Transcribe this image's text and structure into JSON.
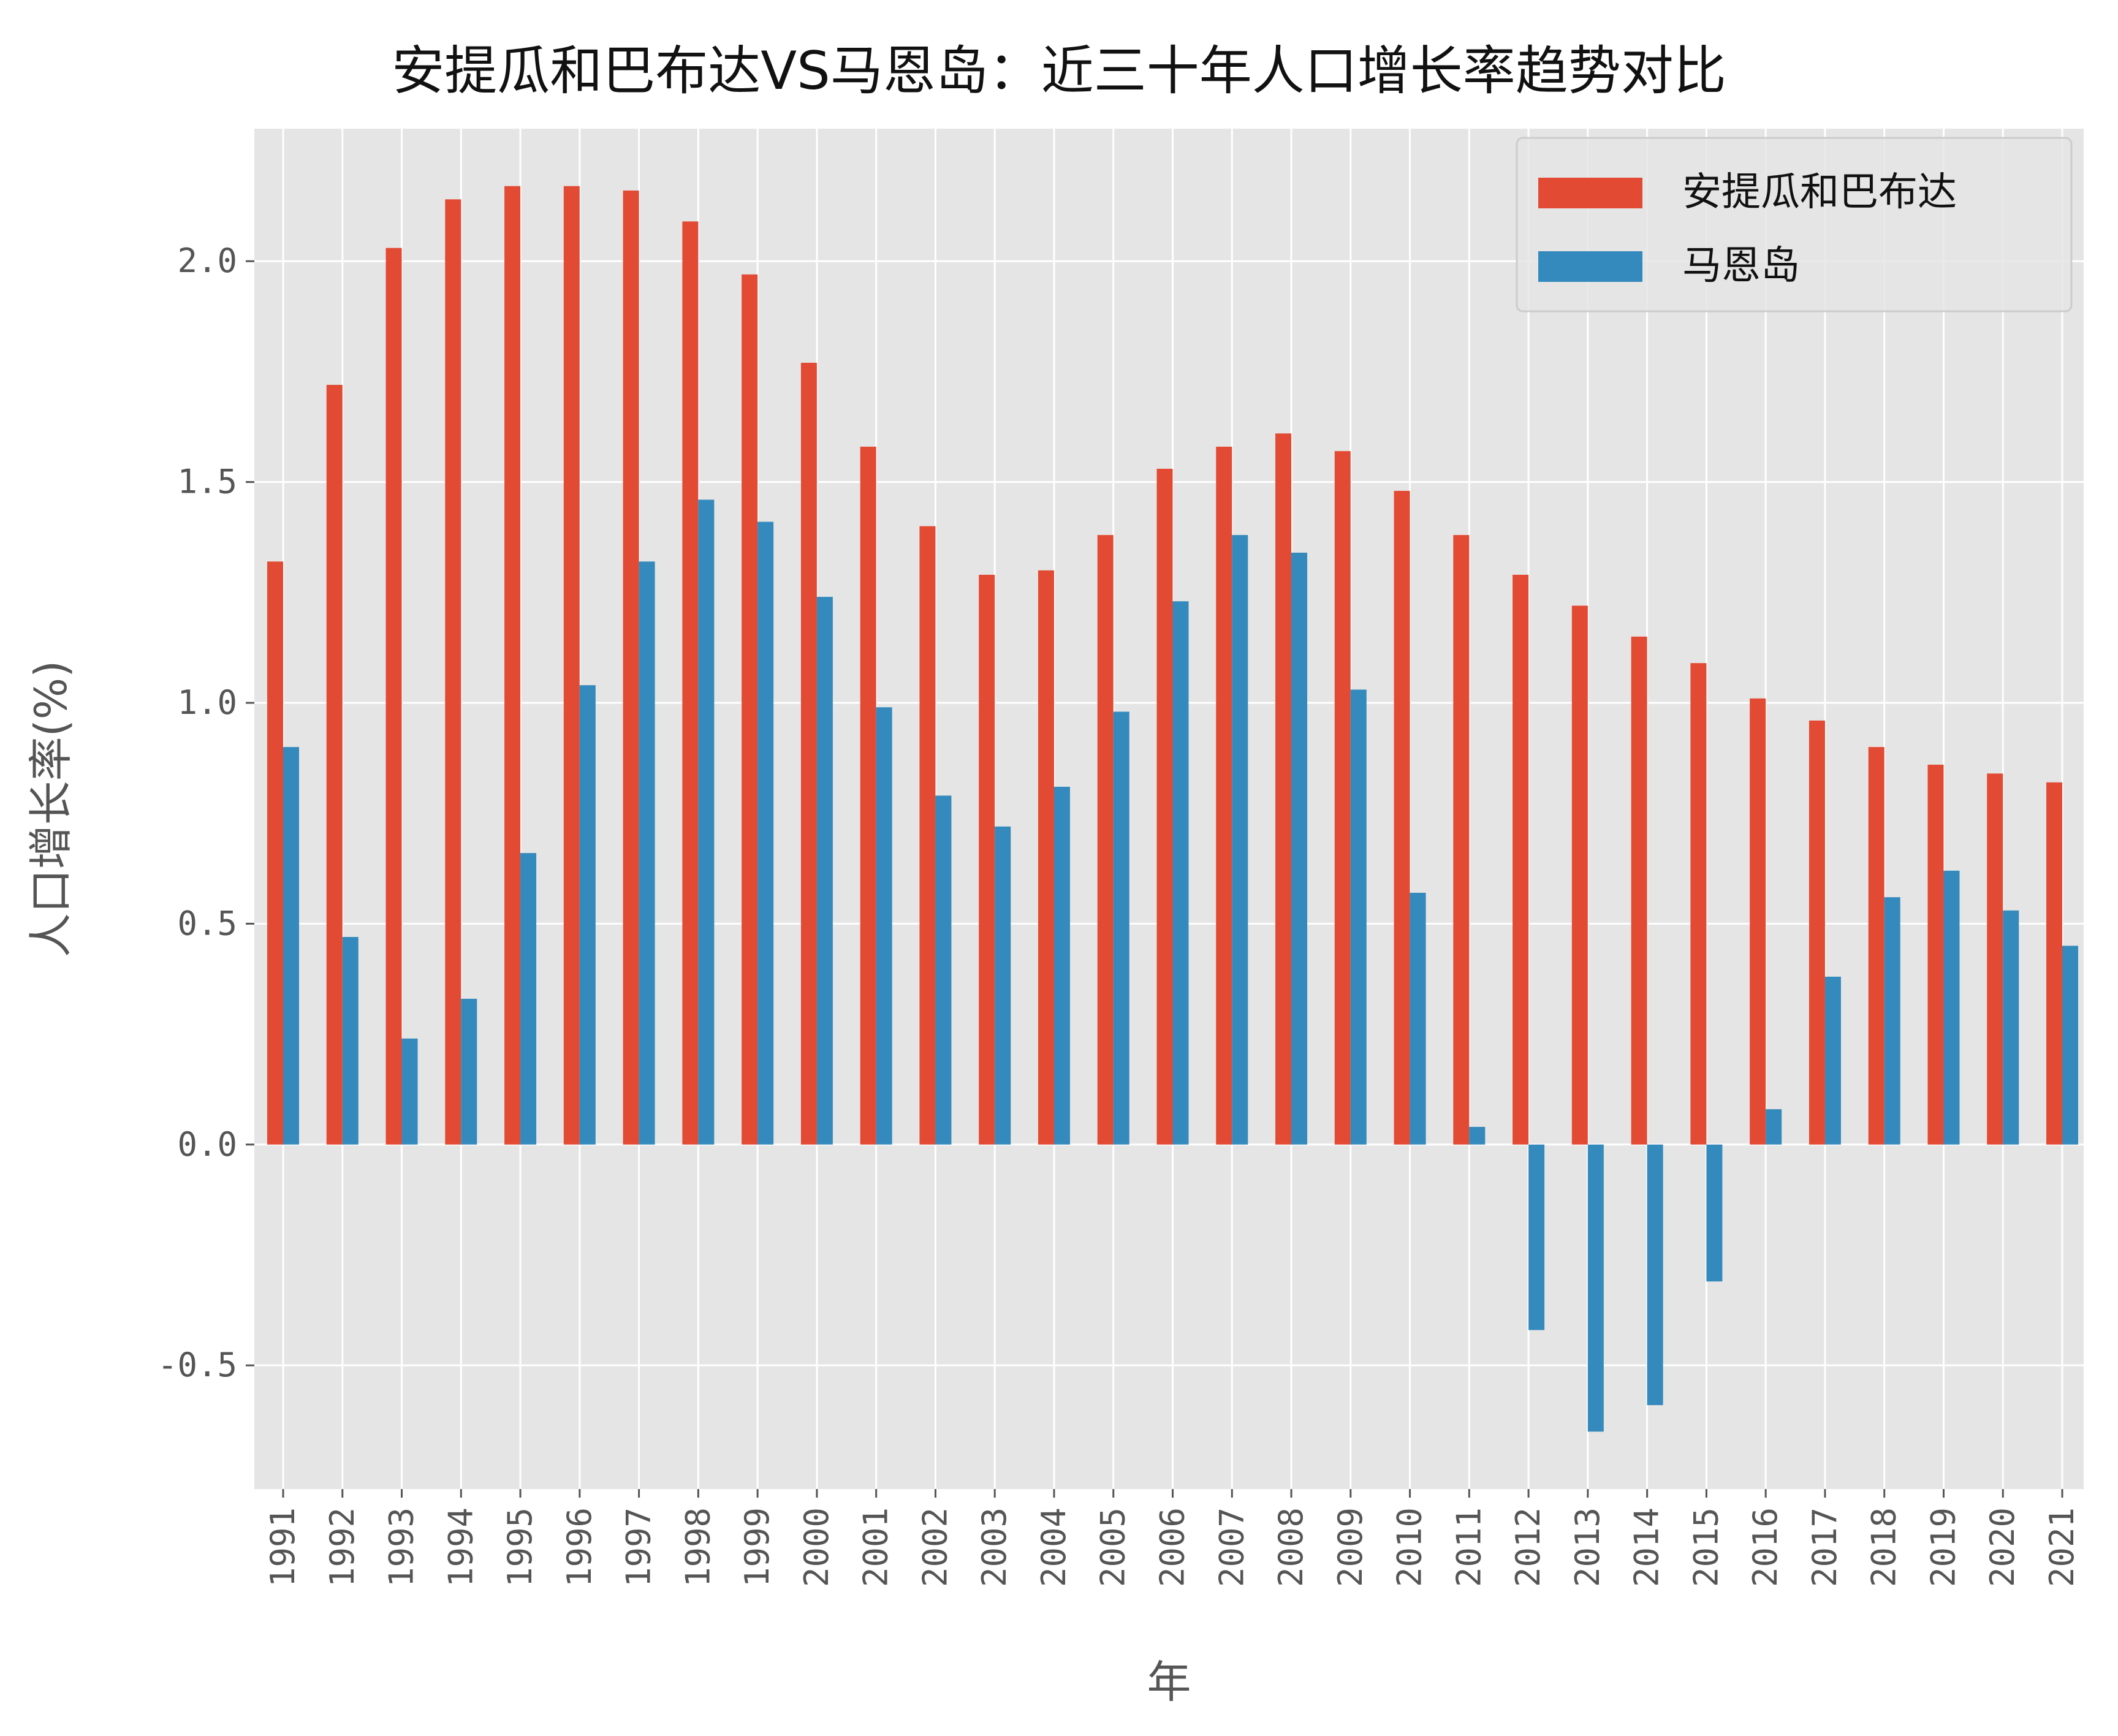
{
  "chart_data": {
    "type": "bar",
    "title": "安提瓜和巴布达VS马恩岛：近三十年人口增长率趋势对比",
    "xlabel": "年",
    "ylabel": "人口增长率(%)",
    "ylim": [
      -0.78,
      2.3
    ],
    "yticks": [
      -0.5,
      0.0,
      0.5,
      1.0,
      1.5,
      2.0
    ],
    "ytick_labels": [
      "-0.5",
      "0.0",
      "0.5",
      "1.0",
      "1.5",
      "2.0"
    ],
    "grid": true,
    "legend_position": "top-right",
    "categories": [
      "1991",
      "1992",
      "1993",
      "1994",
      "1995",
      "1996",
      "1997",
      "1998",
      "1999",
      "2000",
      "2001",
      "2002",
      "2003",
      "2004",
      "2005",
      "2006",
      "2007",
      "2008",
      "2009",
      "2010",
      "2011",
      "2012",
      "2013",
      "2014",
      "2015",
      "2016",
      "2017",
      "2018",
      "2019",
      "2020",
      "2021"
    ],
    "series": [
      {
        "name": "安提瓜和巴布达",
        "color": "#E24A33",
        "values": [
          1.32,
          1.72,
          2.03,
          2.14,
          2.17,
          2.17,
          2.16,
          2.09,
          1.97,
          1.77,
          1.58,
          1.4,
          1.29,
          1.3,
          1.38,
          1.53,
          1.58,
          1.61,
          1.57,
          1.48,
          1.38,
          1.29,
          1.22,
          1.15,
          1.09,
          1.01,
          0.96,
          0.9,
          0.86,
          0.84,
          0.82
        ]
      },
      {
        "name": "马恩岛",
        "color": "#348ABD",
        "values": [
          0.9,
          0.47,
          0.24,
          0.33,
          0.66,
          1.04,
          1.32,
          1.46,
          1.41,
          1.24,
          0.99,
          0.79,
          0.72,
          0.81,
          0.98,
          1.23,
          1.38,
          1.34,
          1.03,
          0.57,
          0.04,
          -0.42,
          -0.65,
          -0.59,
          -0.31,
          0.08,
          0.38,
          0.56,
          0.62,
          0.53,
          0.45
        ]
      }
    ]
  },
  "style": {
    "plot_background": "#E5E5E5",
    "grid_color": "#FFFFFF"
  }
}
